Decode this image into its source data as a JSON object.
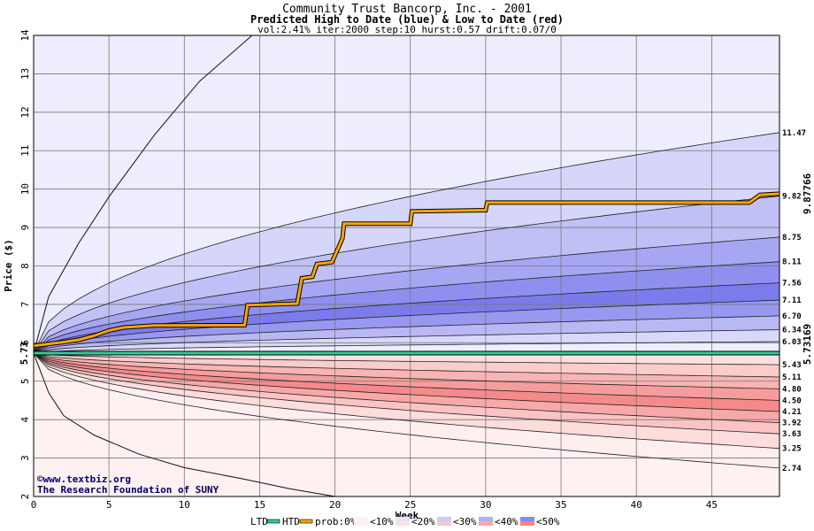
{
  "chart_data": {
    "type": "area",
    "title": "Community Trust Bancorp, Inc. - 2001",
    "subtitle": "Predicted High to Date (blue) &  Low to Date (red)",
    "params": "vol:2.41% iter:2000 step:10 hurst:0.57 drift:0.07/0",
    "xlabel": "Week",
    "ylabel": "Price ($)",
    "xlim": [
      0,
      49.5
    ],
    "ylim": [
      2,
      14
    ],
    "x_ticks": [
      "0",
      "5",
      "10",
      "15",
      "20",
      "25",
      "30",
      "35",
      "40",
      "45"
    ],
    "y_ticks": [
      "2",
      "3",
      "4",
      "5",
      "6",
      "7",
      "8",
      "9",
      "10",
      "11",
      "12",
      "13",
      "14"
    ],
    "start_price": 5.73,
    "start_label": "5.73",
    "htd_final_label": "9.87766",
    "ltd_final_label": "5.73169",
    "high_band_end_labels": [
      "11.47",
      "9.82",
      "8.75",
      "8.11",
      "7.56",
      "7.11",
      "6.70",
      "6.34",
      "6.03"
    ],
    "low_band_end_labels": [
      "5.43",
      "5.11",
      "4.80",
      "4.50",
      "4.21",
      "3.92",
      "3.63",
      "3.25",
      "2.74"
    ],
    "high_band_end_values": [
      11.47,
      9.82,
      8.75,
      8.11,
      7.56,
      7.11,
      6.7,
      6.34,
      6.03
    ],
    "low_band_end_values": [
      5.43,
      5.11,
      4.8,
      4.5,
      4.21,
      3.92,
      3.63,
      3.25,
      2.74
    ],
    "outer_high_curve": [
      [
        0,
        5.73
      ],
      [
        1,
        7.2
      ],
      [
        3,
        8.6
      ],
      [
        5,
        9.8
      ],
      [
        8,
        11.4
      ],
      [
        11,
        12.8
      ],
      [
        14.5,
        14
      ]
    ],
    "outer_low_curve": [
      [
        0,
        5.73
      ],
      [
        1,
        4.7
      ],
      [
        2,
        4.1
      ],
      [
        4,
        3.6
      ],
      [
        7,
        3.1
      ],
      [
        10,
        2.75
      ],
      [
        14,
        2.45
      ],
      [
        17,
        2.2
      ],
      [
        20,
        2.0
      ]
    ],
    "htd_series": {
      "name": "HTD",
      "points": [
        [
          0,
          5.92
        ],
        [
          1,
          5.97
        ],
        [
          2,
          6.02
        ],
        [
          3,
          6.08
        ],
        [
          4,
          6.18
        ],
        [
          5,
          6.32
        ],
        [
          6,
          6.4
        ],
        [
          8,
          6.45
        ],
        [
          14,
          6.46
        ],
        [
          14.2,
          6.98
        ],
        [
          17.5,
          7.02
        ],
        [
          17.8,
          7.68
        ],
        [
          18.5,
          7.72
        ],
        [
          18.8,
          8.05
        ],
        [
          19.8,
          8.1
        ],
        [
          20.5,
          8.72
        ],
        [
          20.6,
          9.1
        ],
        [
          25,
          9.1
        ],
        [
          25.1,
          9.42
        ],
        [
          30,
          9.45
        ],
        [
          30.1,
          9.65
        ],
        [
          47.5,
          9.65
        ],
        [
          48.2,
          9.85
        ],
        [
          49.5,
          9.88
        ]
      ],
      "final": 9.87766
    },
    "ltd_series": {
      "name": "LTD",
      "points": [
        [
          0,
          5.73
        ],
        [
          49.5,
          5.73
        ]
      ],
      "final": 5.73169
    },
    "legend": {
      "ltd": "LTD",
      "htd": "HTD",
      "prob_prefix": "prob:0%",
      "items": [
        "<10%",
        "<20%",
        "<30%",
        "<40%",
        "<50%"
      ]
    },
    "colors": {
      "htd": "#ffa500",
      "ltd": "#33cc99",
      "ltd_label": "#006633",
      "htd_label": "#886600",
      "high_bands": [
        "#ededfd",
        "#d6d6fa",
        "#c0c0f6",
        "#a6a6f3",
        "#8f8fef",
        "#7b7bec",
        "#9898f0",
        "#b8b8f5",
        "#d8d8fb"
      ],
      "low_bands": [
        "#fde0e0",
        "#fbcccc",
        "#f9b4b4",
        "#f79c9c",
        "#f58a8a",
        "#f8a8a8",
        "#fbc4c4",
        "#fddcdc",
        "#feeeee"
      ]
    }
  },
  "credit": {
    "line1": "©www.textbiz.org",
    "line2": "The Research Foundation of SUNY"
  }
}
